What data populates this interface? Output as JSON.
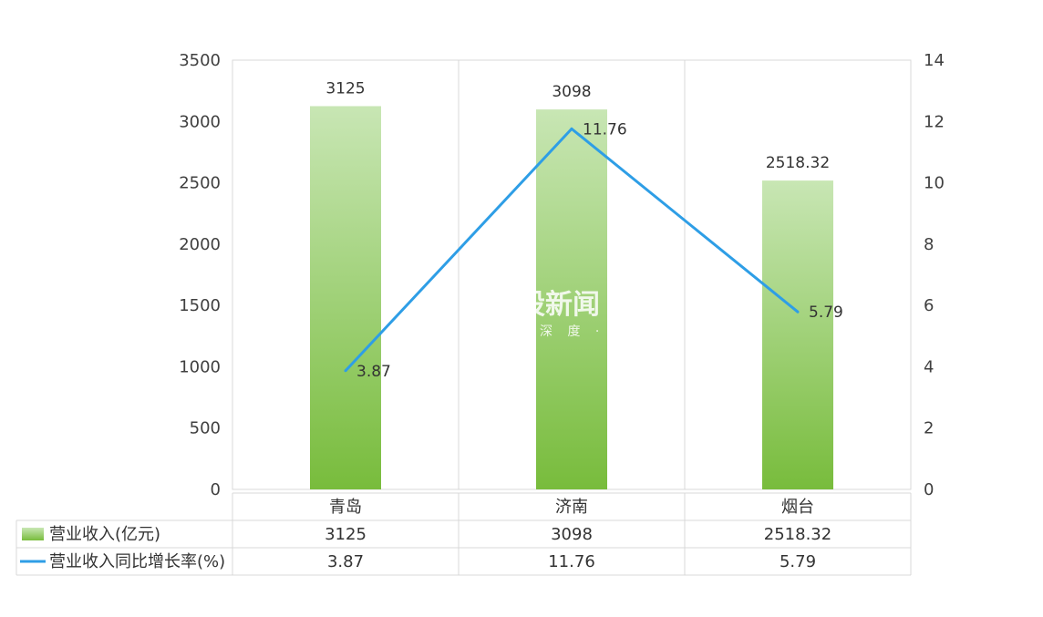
{
  "chart_data": {
    "type": "bar",
    "categories": [
      "青岛",
      "济南",
      "烟台"
    ],
    "series": [
      {
        "name": "营业收入(亿元)",
        "kind": "bar",
        "axis": "left",
        "values": [
          3125,
          3098,
          2518.32
        ],
        "labels": [
          "3125",
          "3098",
          "2518.32"
        ],
        "color_top": "#c8e6b4",
        "color_bottom": "#78bc3c"
      },
      {
        "name": "营业收入同比增长率(%)",
        "kind": "line",
        "axis": "right",
        "values": [
          3.87,
          11.76,
          5.79
        ],
        "labels": [
          "3.87",
          "11.76",
          "5.79"
        ],
        "color": "#2e9ee6"
      }
    ],
    "y_left": {
      "ylim": [
        0,
        3500
      ],
      "ticks": [
        "0",
        "500",
        "1000",
        "1500",
        "2000",
        "2500",
        "3000",
        "3500"
      ]
    },
    "y_right": {
      "ylim": [
        0,
        14
      ],
      "ticks": [
        "0",
        "2",
        "4",
        "6",
        "8",
        "10",
        "12",
        "14"
      ]
    },
    "grid": true,
    "data_table": true
  },
  "watermark": {
    "text": "股新闻",
    "subtext": "深 度 · 温"
  }
}
